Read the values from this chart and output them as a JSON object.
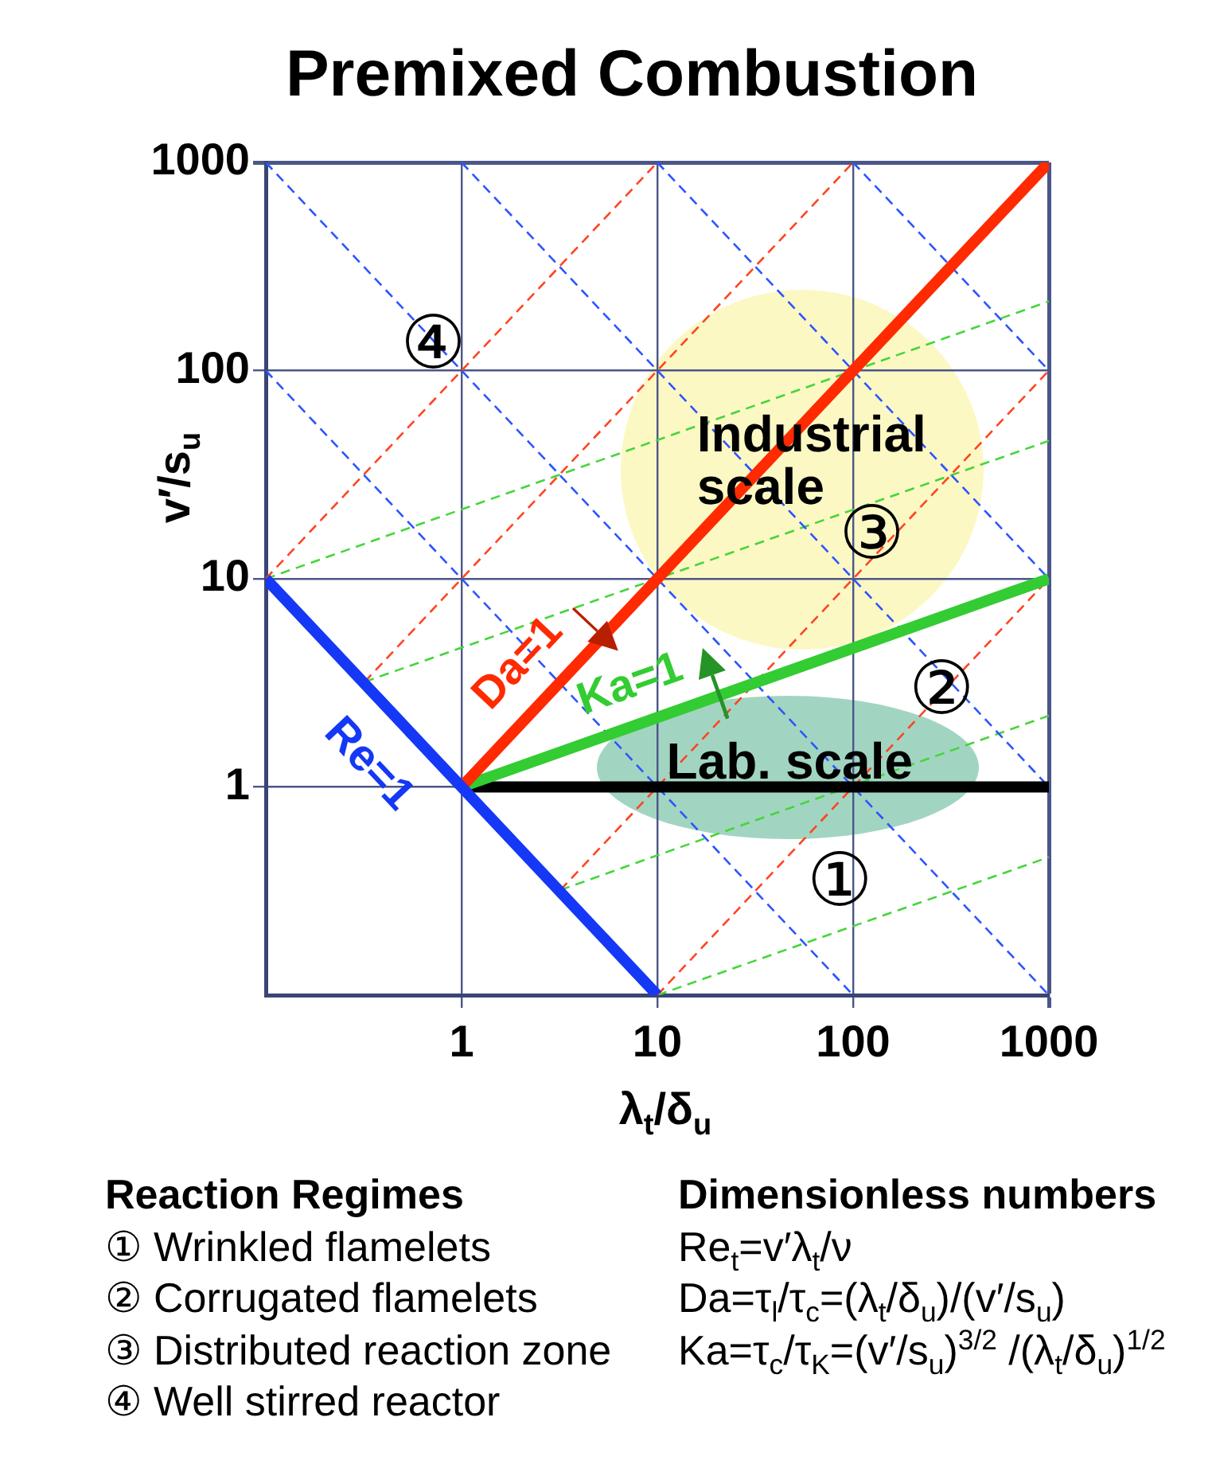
{
  "chart_data": {
    "type": "line",
    "title": "Premixed Combustion",
    "xlabel": "λ$_{t}$/δ$_{u}$",
    "ylabel": "v′/s$_{u}$",
    "log": "xy",
    "grid": true,
    "xlim": [
      0.1,
      1000
    ],
    "ylim": [
      0.1,
      1000
    ],
    "xticks": [
      1,
      10,
      100,
      1000
    ],
    "yticks": [
      1,
      10,
      100,
      1000
    ],
    "series": [
      {
        "name": "Re=1",
        "color": "#1438f5",
        "x": [
          0.1,
          10
        ],
        "values": [
          10,
          0.1
        ]
      },
      {
        "name": "Da=1",
        "color": "#ff2a00",
        "x": [
          1,
          1000
        ],
        "values": [
          1,
          1000
        ]
      },
      {
        "name": "Ka=1",
        "color": "#33cc33",
        "x": [
          1,
          1000
        ],
        "values": [
          1,
          10
        ]
      },
      {
        "color": "#000000",
        "x": [
          1,
          1000
        ],
        "values": [
          1,
          1
        ]
      },
      {
        "color": "#2d55ff",
        "line_style": "dashed",
        "x": [
          0.1,
          100
        ],
        "values": [
          100,
          0.1
        ]
      },
      {
        "color": "#2d55ff",
        "line_style": "dashed",
        "x": [
          0.1,
          1000
        ],
        "values": [
          1000,
          0.1
        ]
      },
      {
        "color": "#2d55ff",
        "line_style": "dashed",
        "x": [
          1,
          1000
        ],
        "values": [
          1000,
          1
        ]
      },
      {
        "color": "#2d55ff",
        "line_style": "dashed",
        "x": [
          10,
          1000
        ],
        "values": [
          1000,
          10
        ]
      },
      {
        "color": "#2d55ff",
        "line_style": "dashed",
        "x": [
          100,
          1000
        ],
        "values": [
          1000,
          100
        ]
      },
      {
        "color": "#ff4422",
        "line_style": "dashed",
        "x": [
          0.1,
          10
        ],
        "values": [
          10,
          1000
        ]
      },
      {
        "color": "#ff4422",
        "line_style": "dashed",
        "x": [
          0.32,
          100
        ],
        "values": [
          3.2,
          1000
        ]
      },
      {
        "color": "#ff4422",
        "line_style": "dashed",
        "x": [
          3.2,
          1000
        ],
        "values": [
          0.32,
          100
        ]
      },
      {
        "color": "#ff4422",
        "line_style": "dashed",
        "x": [
          10,
          1000
        ],
        "values": [
          0.1,
          10
        ]
      },
      {
        "color": "#44d63a",
        "line_style": "dashed",
        "x": [
          0.1,
          1000
        ],
        "values": [
          10,
          215
        ]
      },
      {
        "color": "#44d63a",
        "line_style": "dashed",
        "x": [
          0.32,
          1000
        ],
        "values": [
          3.2,
          46
        ]
      },
      {
        "color": "#44d63a",
        "line_style": "dashed",
        "x": [
          3.2,
          1000
        ],
        "values": [
          0.32,
          2.2
        ]
      },
      {
        "color": "#44d63a",
        "line_style": "dashed",
        "x": [
          10,
          1000
        ],
        "values": [
          0.1,
          0.46
        ]
      }
    ],
    "annotations": [
      "Industrial scale",
      "Lab. scale",
      "①",
      "②",
      "③",
      "④",
      "Reaction Regimes",
      "① Wrinkled flamelets",
      "② Corrugated flamelets",
      "③ Distributed reaction zone",
      "④ Well stirred reactor",
      "Dimensionless numbers",
      "Re$_{t}$=v′λ$_{t}$/ν",
      "Da=τ$_{l}$/τ$_{c}$=(λ$_{t}$/δ$_{u}$)/(v′/s$_{u}$)",
      "Ka=τ$_{c}$/τ$_{K}$=(v′/s$_{u}$)$^{3/2}$ /(λ$_{t}$/δ$_{u}$)$^{1/2}$"
    ]
  }
}
